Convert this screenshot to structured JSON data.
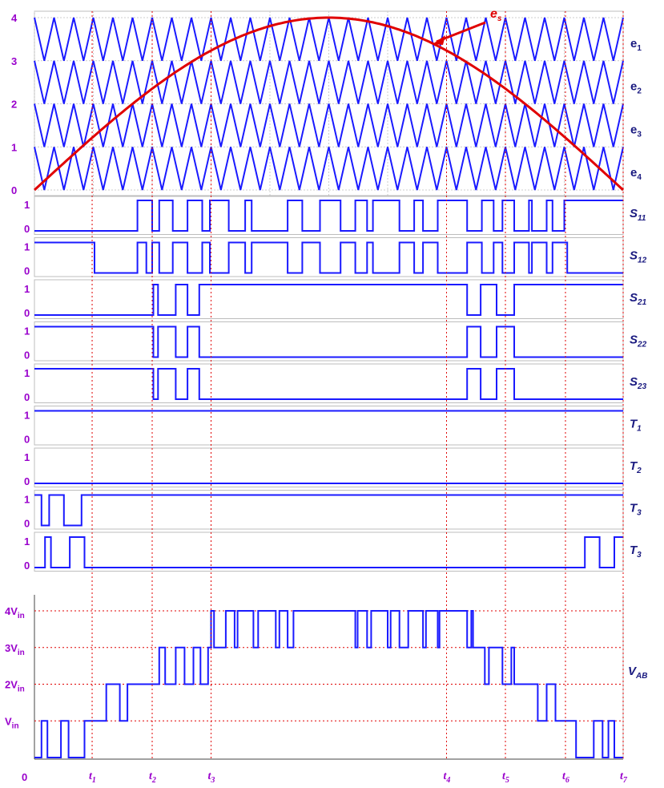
{
  "chart_data": {
    "type": "line",
    "carrier_panel": {
      "y_ticks": [
        "0",
        "1",
        "2",
        "3",
        "4"
      ],
      "ylim": [
        0,
        4
      ],
      "xlim": [
        0,
        1
      ],
      "carrier_triangles_per_band": 30,
      "carriers": [
        {
          "name": "e1",
          "label": "e",
          "sub": "1",
          "band": [
            3,
            4
          ]
        },
        {
          "name": "e2",
          "label": "e",
          "sub": "2",
          "band": [
            2,
            3
          ]
        },
        {
          "name": "e3",
          "label": "e",
          "sub": "3",
          "band": [
            1,
            2
          ]
        },
        {
          "name": "e4",
          "label": "e",
          "sub": "4",
          "band": [
            0,
            1
          ]
        }
      ],
      "reference": {
        "name": "es",
        "label": "e",
        "sub": "s",
        "shape": "half-sine",
        "amplitude": 4,
        "color": "#e00000"
      },
      "carrier_color": "#1a1aff",
      "grid": true
    },
    "switch_signals": [
      {
        "label": "S",
        "sub": "11",
        "y_ticks": [
          "1",
          "0"
        ],
        "transitions": [
          0.175,
          0.2,
          0.212,
          0.235,
          0.26,
          0.285,
          0.298,
          0.33,
          0.358,
          0.369,
          0.43,
          0.455,
          0.485,
          0.52,
          0.545,
          0.565,
          0.575,
          0.62,
          0.645,
          0.66,
          0.685,
          0.735,
          0.76,
          0.78,
          0.795,
          0.815,
          0.84,
          0.845,
          0.87,
          0.88,
          0.9
        ],
        "start": 0
      },
      {
        "label": "S",
        "sub": "12",
        "y_ticks": [
          "1",
          "0"
        ],
        "transitions": [
          0.102,
          0.175,
          0.19,
          0.2,
          0.212,
          0.235,
          0.26,
          0.285,
          0.298,
          0.33,
          0.358,
          0.369,
          0.43,
          0.455,
          0.485,
          0.52,
          0.545,
          0.565,
          0.575,
          0.62,
          0.645,
          0.66,
          0.685,
          0.735,
          0.76,
          0.78,
          0.795,
          0.815,
          0.84,
          0.845,
          0.87,
          0.88,
          0.905
        ],
        "start": 1
      },
      {
        "label": "S",
        "sub": "21",
        "y_ticks": [
          "1",
          "0"
        ],
        "transitions": [
          0.202,
          0.21,
          0.24,
          0.26,
          0.28,
          0.735,
          0.758,
          0.785,
          0.815
        ],
        "start": 0
      },
      {
        "label": "S",
        "sub": "22",
        "y_ticks": [
          "1",
          "0"
        ],
        "transitions": [
          0.202,
          0.21,
          0.24,
          0.26,
          0.28,
          0.735,
          0.758,
          0.785,
          0.815
        ],
        "start": 1
      },
      {
        "label": "S",
        "sub": "23",
        "y_ticks": [
          "1",
          "0"
        ],
        "transitions": [
          0.202,
          0.21,
          0.24,
          0.26,
          0.28,
          0.735,
          0.758,
          0.785,
          0.815
        ],
        "start": 1
      },
      {
        "label": "T",
        "sub": "1",
        "y_ticks": [
          "1",
          "0"
        ],
        "transitions": [],
        "start": 1
      },
      {
        "label": "T",
        "sub": "2",
        "y_ticks": [
          "1",
          "0"
        ],
        "transitions": [],
        "start": 0
      },
      {
        "label": "T",
        "sub": "3",
        "y_ticks": [
          "1",
          "0"
        ],
        "transitions": [
          0.012,
          0.025,
          0.05,
          0.08
        ],
        "start": 1
      },
      {
        "label": "T",
        "sub": "3",
        "y_ticks": [
          "1",
          "0"
        ],
        "transitions": [
          0.018,
          0.028,
          0.06,
          0.085,
          0.935,
          0.96,
          0.985
        ],
        "start": 0
      }
    ],
    "output_voltage": {
      "label": "V",
      "sub": "AB",
      "y_ticks": [
        {
          "value": 0,
          "label": "0",
          "sub": ""
        },
        {
          "value": 1,
          "label": "V",
          "sub": "in"
        },
        {
          "value": 2,
          "label": "2V",
          "sub": "in"
        },
        {
          "value": 3,
          "label": "3V",
          "sub": "in"
        },
        {
          "value": 4,
          "label": "4V",
          "sub": "in"
        }
      ],
      "ylim": [
        0,
        4
      ],
      "steps": [
        [
          0.0,
          0
        ],
        [
          0.012,
          1
        ],
        [
          0.022,
          0
        ],
        [
          0.045,
          1
        ],
        [
          0.058,
          0
        ],
        [
          0.085,
          1
        ],
        [
          0.118,
          1
        ],
        [
          0.122,
          2
        ],
        [
          0.145,
          1
        ],
        [
          0.158,
          2
        ],
        [
          0.205,
          2
        ],
        [
          0.212,
          3
        ],
        [
          0.222,
          2
        ],
        [
          0.24,
          3
        ],
        [
          0.255,
          2
        ],
        [
          0.27,
          3
        ],
        [
          0.282,
          2
        ],
        [
          0.295,
          3
        ],
        [
          0.3,
          4
        ],
        [
          0.305,
          3
        ],
        [
          0.325,
          4
        ],
        [
          0.34,
          3
        ],
        [
          0.345,
          4
        ],
        [
          0.372,
          3
        ],
        [
          0.38,
          4
        ],
        [
          0.41,
          3
        ],
        [
          0.416,
          4
        ],
        [
          0.43,
          3
        ],
        [
          0.44,
          4
        ],
        [
          0.545,
          3
        ],
        [
          0.549,
          4
        ],
        [
          0.565,
          3
        ],
        [
          0.572,
          4
        ],
        [
          0.6,
          3
        ],
        [
          0.605,
          4
        ],
        [
          0.62,
          3
        ],
        [
          0.635,
          4
        ],
        [
          0.66,
          3
        ],
        [
          0.665,
          4
        ],
        [
          0.685,
          3
        ],
        [
          0.688,
          4
        ],
        [
          0.735,
          3
        ],
        [
          0.742,
          4
        ],
        [
          0.745,
          3
        ],
        [
          0.765,
          2
        ],
        [
          0.772,
          3
        ],
        [
          0.795,
          2
        ],
        [
          0.81,
          3
        ],
        [
          0.815,
          2
        ],
        [
          0.855,
          1
        ],
        [
          0.87,
          2
        ],
        [
          0.885,
          1
        ],
        [
          0.905,
          1
        ],
        [
          0.92,
          0
        ],
        [
          0.95,
          1
        ],
        [
          0.965,
          0
        ],
        [
          0.975,
          1
        ],
        [
          0.985,
          0
        ]
      ]
    },
    "time_markers": [
      {
        "label": "t",
        "sub": "1",
        "x": 0.098
      },
      {
        "label": "t",
        "sub": "2",
        "x": 0.2
      },
      {
        "label": "t",
        "sub": "3",
        "x": 0.3
      },
      {
        "label": "t",
        "sub": "4",
        "x": 0.7
      },
      {
        "label": "t",
        "sub": "5",
        "x": 0.8
      },
      {
        "label": "t",
        "sub": "6",
        "x": 0.902
      },
      {
        "label": "t",
        "sub": "7",
        "x": 1.0
      }
    ],
    "colors": {
      "signal": "#1a1aff",
      "reference": "#e00000",
      "marker": "#e00000",
      "labels": "#9900cc",
      "names": "#1a1a80"
    }
  }
}
